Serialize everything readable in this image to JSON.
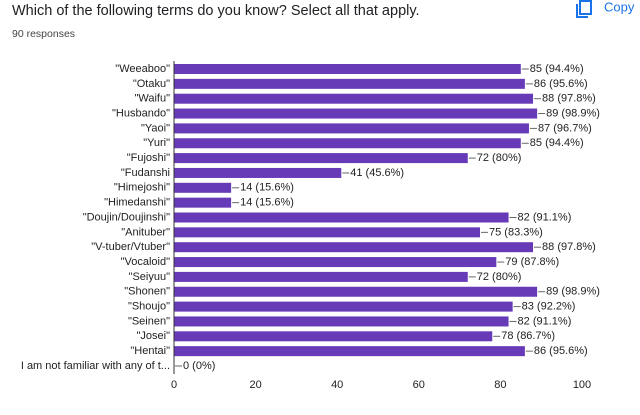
{
  "button": "Copy",
  "chart_data": {
    "type": "bar",
    "orientation": "horizontal",
    "title": "Which of the following terms do you know? Select all that apply.",
    "subtitle": "90 responses",
    "categories": [
      "\"Weeaboo\"",
      "\"Otaku\"",
      "\"Waifu\"",
      "\"Husbando\"",
      "\"Yaoi\"",
      "\"Yuri\"",
      "\"Fujoshi\"",
      "\"Fudanshi",
      "\"Himejoshi\"",
      "\"Himedanshi\"",
      "\"Doujin/Doujinshi\"",
      "\"Anituber\"",
      "\"V-tuber/Vtuber\"",
      "\"Vocaloid\"",
      "\"Seiyuu\"",
      "\"Shonen\"",
      "\"Shoujo\"",
      "\"Seinen\"",
      "\"Josei\"",
      "\"Hentai\"",
      "I am not familiar with any of t..."
    ],
    "values": [
      85,
      86,
      88,
      89,
      87,
      85,
      72,
      41,
      14,
      14,
      82,
      75,
      88,
      79,
      72,
      89,
      83,
      82,
      78,
      86,
      0
    ],
    "value_labels": [
      "85 (94.4%)",
      "86 (95.6%)",
      "88 (97.8%)",
      "89 (98.9%)",
      "87 (96.7%)",
      "85 (94.4%)",
      "72 (80%)",
      "41 (45.6%)",
      "14 (15.6%)",
      "14 (15.6%)",
      "82 (91.1%)",
      "75 (83.3%)",
      "88 (97.8%)",
      "79 (87.8%)",
      "72 (80%)",
      "89 (98.9%)",
      "83 (92.2%)",
      "82 (91.1%)",
      "78 (86.7%)",
      "86 (95.6%)",
      "0 (0%)"
    ],
    "color": "#673ab7",
    "xlim": [
      0,
      100
    ],
    "xticks": [
      0,
      20,
      40,
      60,
      80,
      100
    ]
  }
}
